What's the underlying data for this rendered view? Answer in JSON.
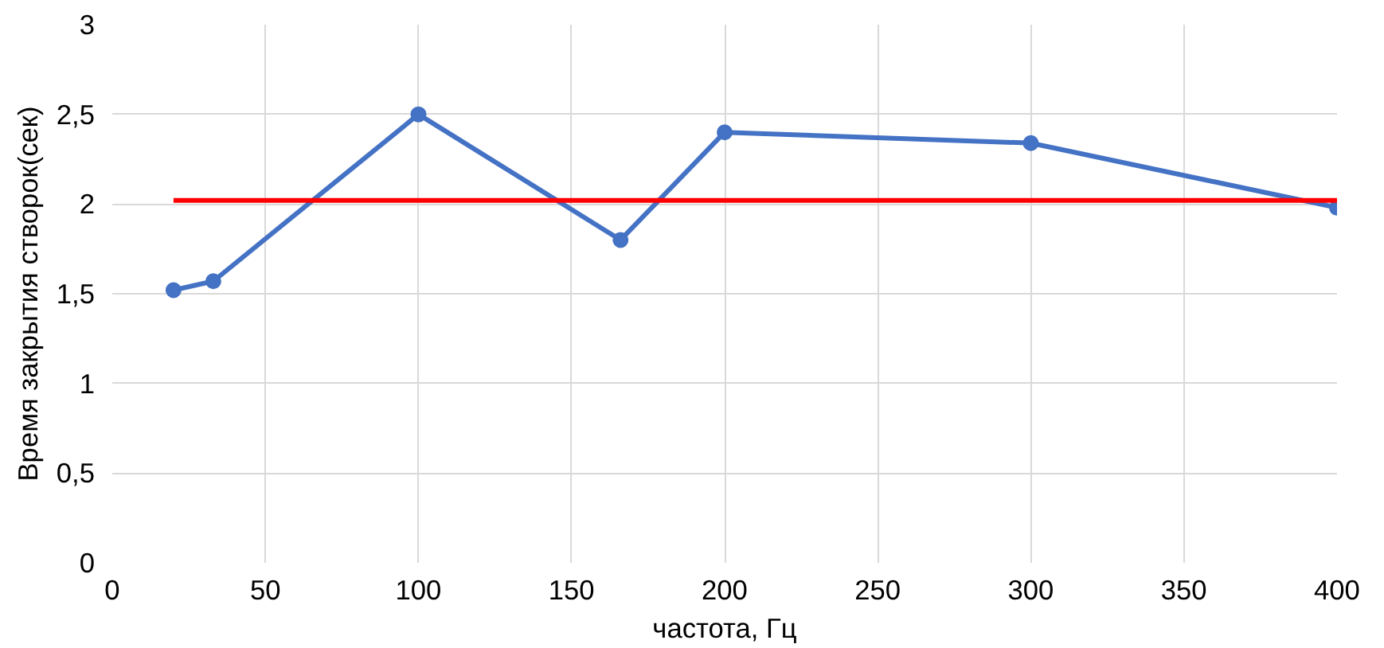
{
  "chart_data": {
    "type": "line",
    "xlabel": "частота, Гц",
    "ylabel": "Время закрытия створок(сек)",
    "xlim": [
      0,
      400
    ],
    "xticks": [
      0,
      50,
      100,
      150,
      200,
      250,
      300,
      350,
      400
    ],
    "ylim": [
      0,
      3
    ],
    "yticks": [
      0,
      {
        "value": 0.5,
        "label": "0,5"
      },
      1,
      {
        "value": 1.5,
        "label": "1,5"
      },
      2,
      {
        "value": 2.5,
        "label": "2,5"
      },
      3
    ],
    "grid": true,
    "series": [
      {
        "color": "#4472c4",
        "marker": "circle",
        "x": [
          20,
          33,
          100,
          166,
          200,
          300,
          400
        ],
        "values": [
          1.52,
          1.57,
          2.5,
          1.8,
          2.4,
          2.34,
          1.98
        ]
      },
      {
        "color": "#ff0000",
        "marker": "none",
        "x": [
          20,
          400
        ],
        "values": [
          2.02,
          2.02
        ]
      }
    ]
  }
}
